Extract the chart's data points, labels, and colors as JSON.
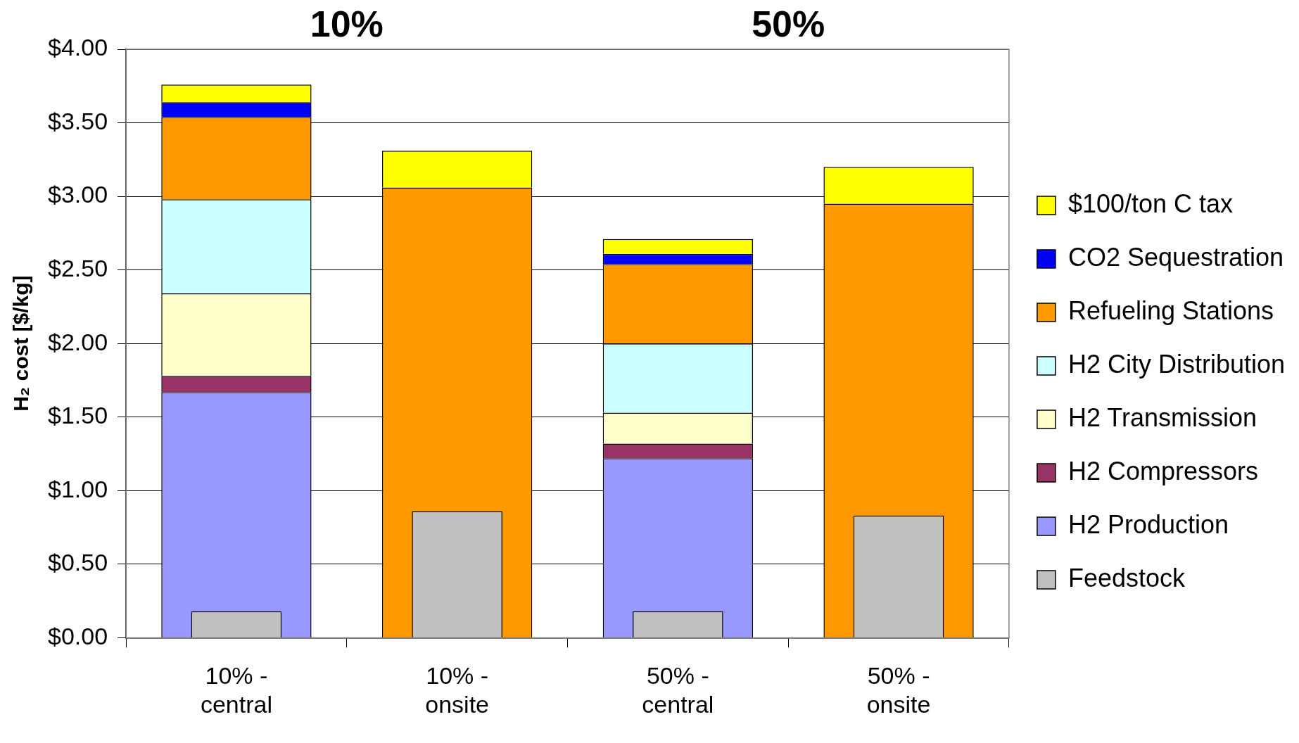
{
  "chart_data": {
    "type": "bar",
    "ylabel": "H₂ cost [$/kg]",
    "annotations": [
      "10%",
      "50%"
    ],
    "categories": [
      "10% - central",
      "10% - onsite",
      "50% - central",
      "50% - onsite"
    ],
    "series": [
      {
        "name": "Feedstock",
        "color": "#c0c0c0",
        "base": [
          0,
          0,
          0,
          0
        ],
        "values": [
          0.18,
          0.86,
          0.18,
          0.83
        ]
      },
      {
        "name": "H2 Production",
        "color": "#9999ff",
        "base": [
          0,
          null,
          0,
          null
        ],
        "values": [
          1.67,
          null,
          1.22,
          null
        ]
      },
      {
        "name": "H2 Compressors",
        "color": "#993366",
        "base": [
          1.67,
          null,
          1.22,
          null
        ],
        "values": [
          0.11,
          null,
          0.1,
          null
        ]
      },
      {
        "name": "H2 Transmission",
        "color": "#ffffcc",
        "base": [
          1.78,
          null,
          1.32,
          null
        ],
        "values": [
          0.56,
          null,
          0.21,
          null
        ]
      },
      {
        "name": "H2 City Distribution",
        "color": "#ccffff",
        "base": [
          2.34,
          null,
          1.53,
          null
        ],
        "values": [
          0.64,
          null,
          0.47,
          null
        ]
      },
      {
        "name": "Refueling Stations",
        "color": "#ff9900",
        "base": [
          2.98,
          0,
          2,
          0
        ],
        "values": [
          0.56,
          3.06,
          0.54,
          2.95
        ]
      },
      {
        "name": "CO2 Sequestration",
        "color": "#0000ff",
        "base": [
          3.54,
          null,
          2.54,
          null
        ],
        "values": [
          0.1,
          null,
          0.07,
          null
        ]
      },
      {
        "name": "$100/ton C tax",
        "color": "#ffff00",
        "base": [
          3.64,
          3.06,
          2.61,
          2.95
        ],
        "values": [
          0.12,
          0.25,
          0.1,
          0.25
        ]
      }
    ],
    "ylim": [
      0,
      4
    ],
    "yticks": [
      {
        "value": 0,
        "label": "$0.00"
      },
      {
        "value": 0.5,
        "label": "$0.50"
      },
      {
        "value": 1,
        "label": "$1.00"
      },
      {
        "value": 1.5,
        "label": "$1.50"
      },
      {
        "value": 2,
        "label": "$2.00"
      },
      {
        "value": 2.5,
        "label": "$2.50"
      },
      {
        "value": 3,
        "label": "$3.00"
      },
      {
        "value": 3.5,
        "label": "$3.50"
      },
      {
        "value": 4,
        "label": "$4.00"
      }
    ],
    "grid": "y",
    "legend": "right"
  }
}
